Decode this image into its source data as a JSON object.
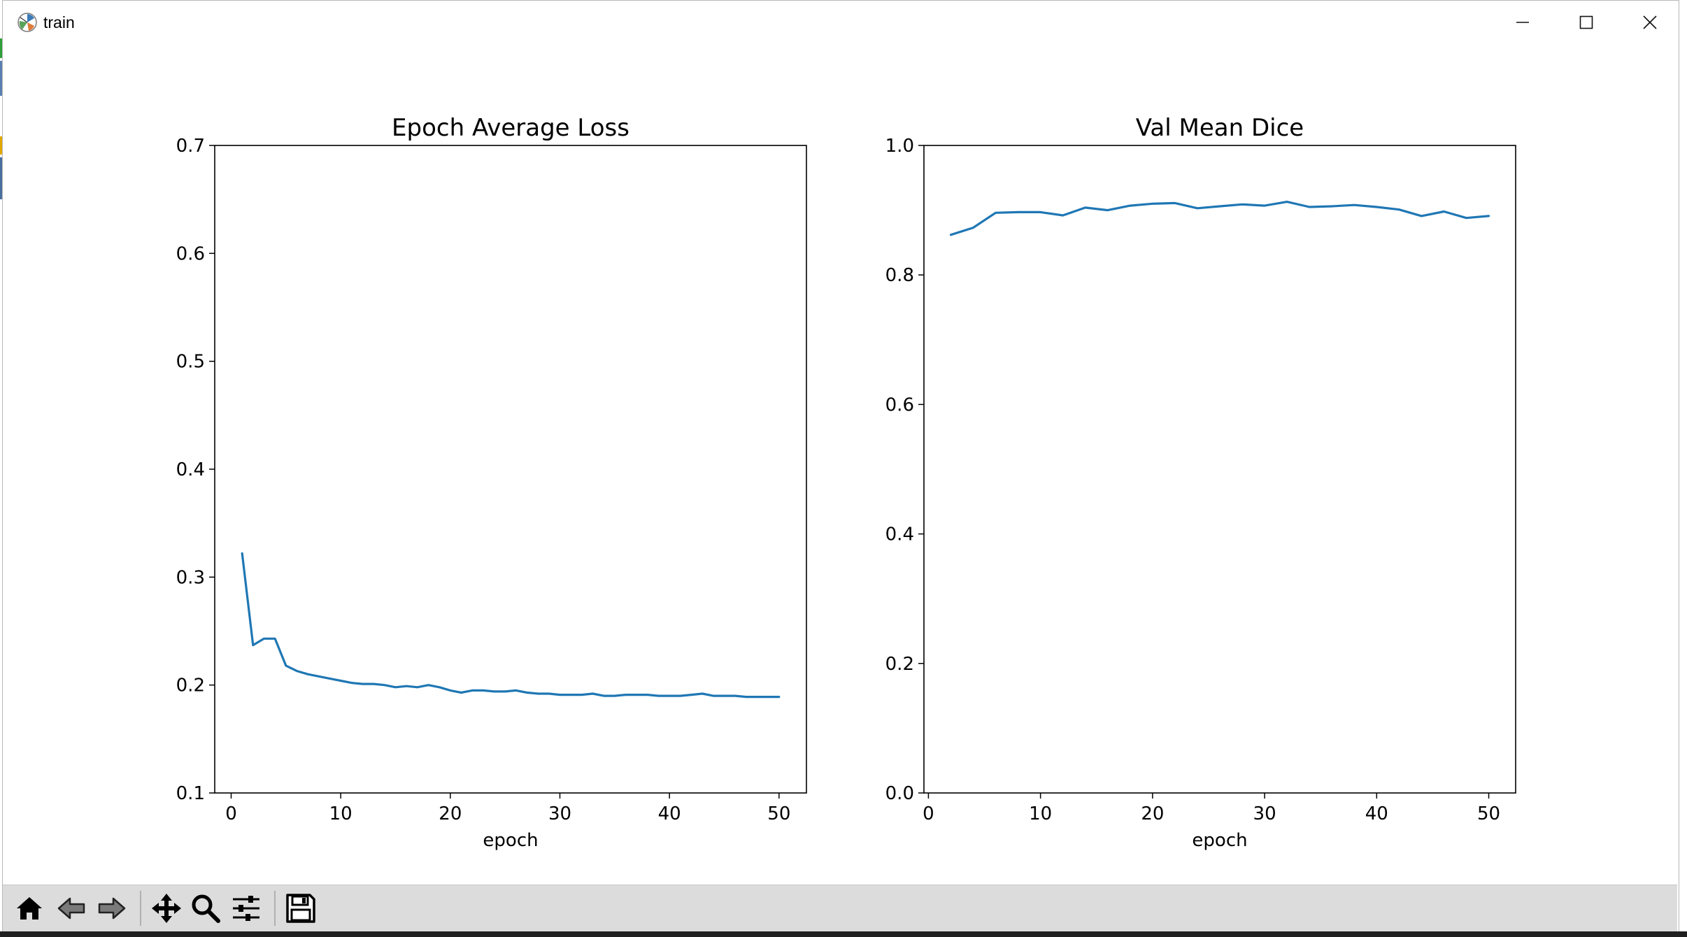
{
  "window": {
    "title": "train",
    "app_icon": "matplotlib-icon",
    "controls": [
      "minimize-icon",
      "maximize-icon",
      "close-icon"
    ]
  },
  "toolbar": {
    "buttons": [
      {
        "name": "home-button",
        "icon": "home-icon"
      },
      {
        "name": "back-button",
        "icon": "back-arrow-icon"
      },
      {
        "name": "forward-button",
        "icon": "forward-arrow-icon"
      },
      {
        "name": "pan-button",
        "icon": "move-arrows-icon"
      },
      {
        "name": "zoom-button",
        "icon": "magnifier-icon"
      },
      {
        "name": "configure-subplots-button",
        "icon": "sliders-icon"
      },
      {
        "name": "save-button",
        "icon": "floppy-disk-icon"
      }
    ]
  },
  "chart_data": [
    {
      "type": "line",
      "title": "Epoch Average Loss",
      "xlabel": "epoch",
      "ylabel": "",
      "xlim": [
        -1.5,
        52.5
      ],
      "ylim": [
        0.1,
        0.7
      ],
      "xticks": [
        0,
        10,
        20,
        30,
        40,
        50
      ],
      "yticks": [
        0.1,
        0.2,
        0.3,
        0.4,
        0.5,
        0.6,
        0.7
      ],
      "ytick_labels": [
        "0.1",
        "0.2",
        "0.3",
        "0.4",
        "0.5",
        "0.6",
        "0.7"
      ],
      "grid": false,
      "color": "#1f77b4",
      "x": [
        1,
        2,
        3,
        4,
        5,
        6,
        7,
        8,
        9,
        10,
        11,
        12,
        13,
        14,
        15,
        16,
        17,
        18,
        19,
        20,
        21,
        22,
        23,
        24,
        25,
        26,
        27,
        28,
        29,
        30,
        31,
        32,
        33,
        34,
        35,
        36,
        37,
        38,
        39,
        40,
        41,
        42,
        43,
        44,
        45,
        46,
        47,
        48,
        49,
        50
      ],
      "values": [
        0.322,
        0.237,
        0.243,
        0.243,
        0.218,
        0.213,
        0.21,
        0.208,
        0.206,
        0.204,
        0.202,
        0.201,
        0.201,
        0.2,
        0.198,
        0.199,
        0.198,
        0.2,
        0.198,
        0.195,
        0.193,
        0.195,
        0.195,
        0.194,
        0.194,
        0.195,
        0.193,
        0.192,
        0.192,
        0.191,
        0.191,
        0.191,
        0.192,
        0.19,
        0.19,
        0.191,
        0.191,
        0.191,
        0.19,
        0.19,
        0.19,
        0.191,
        0.192,
        0.19,
        0.19,
        0.19,
        0.189,
        0.189,
        0.189,
        0.189
      ]
    },
    {
      "type": "line",
      "title": "Val Mean Dice",
      "xlabel": "epoch",
      "ylabel": "",
      "xlim": [
        -0.4,
        52.4
      ],
      "ylim": [
        0.0,
        1.0
      ],
      "xticks": [
        0,
        10,
        20,
        30,
        40,
        50
      ],
      "yticks": [
        0.0,
        0.2,
        0.4,
        0.6,
        0.8,
        1.0
      ],
      "ytick_labels": [
        "0.0",
        "0.2",
        "0.4",
        "0.6",
        "0.8",
        "1.0"
      ],
      "grid": false,
      "color": "#1f77b4",
      "x": [
        2,
        4,
        6,
        8,
        10,
        12,
        14,
        16,
        18,
        20,
        22,
        24,
        26,
        28,
        30,
        32,
        34,
        36,
        38,
        40,
        42,
        44,
        46,
        48,
        50
      ],
      "values": [
        0.862,
        0.873,
        0.896,
        0.897,
        0.897,
        0.892,
        0.904,
        0.9,
        0.907,
        0.91,
        0.911,
        0.903,
        0.906,
        0.909,
        0.907,
        0.913,
        0.905,
        0.906,
        0.908,
        0.905,
        0.901,
        0.891,
        0.898,
        0.888,
        0.891
      ]
    }
  ]
}
